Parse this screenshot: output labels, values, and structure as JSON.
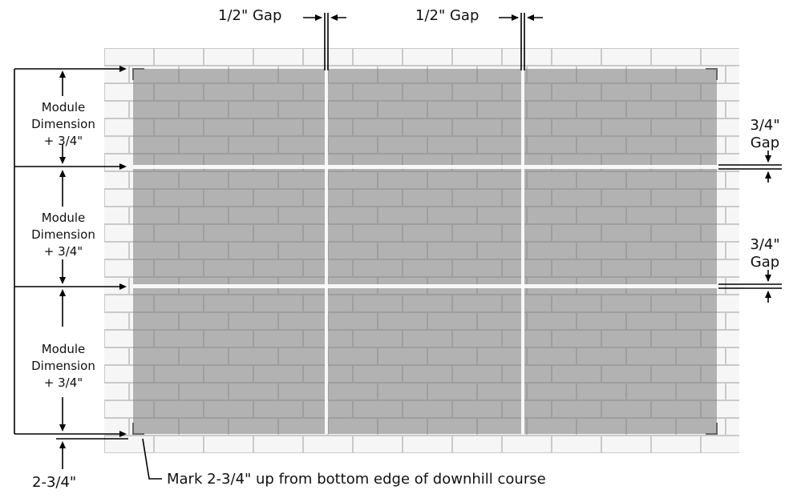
{
  "labels": {
    "top_gap_1": "1/2\" Gap",
    "top_gap_2": "1/2\" Gap",
    "right_gap_1": [
      "3/4\"",
      "Gap"
    ],
    "right_gap_2": [
      "3/4\"",
      "Gap"
    ],
    "module": [
      [
        "Module",
        "Dimension",
        "+ 3/4\""
      ],
      [
        "Module",
        "Dimension",
        "+ 3/4\""
      ],
      [
        "Module",
        "Dimension",
        "+ 3/4\""
      ]
    ],
    "bottom_offset": "2-3/4\"",
    "instruction": "Mark 2-3/4\" up from bottom edge of downhill course"
  },
  "grid": {
    "columns": 3,
    "rows": 3
  },
  "colors": {
    "brick_fill": "#f6f6f6",
    "mortar": "#c9c9c9",
    "panel_overlay": "#7a7a7a",
    "line": "#000000"
  }
}
